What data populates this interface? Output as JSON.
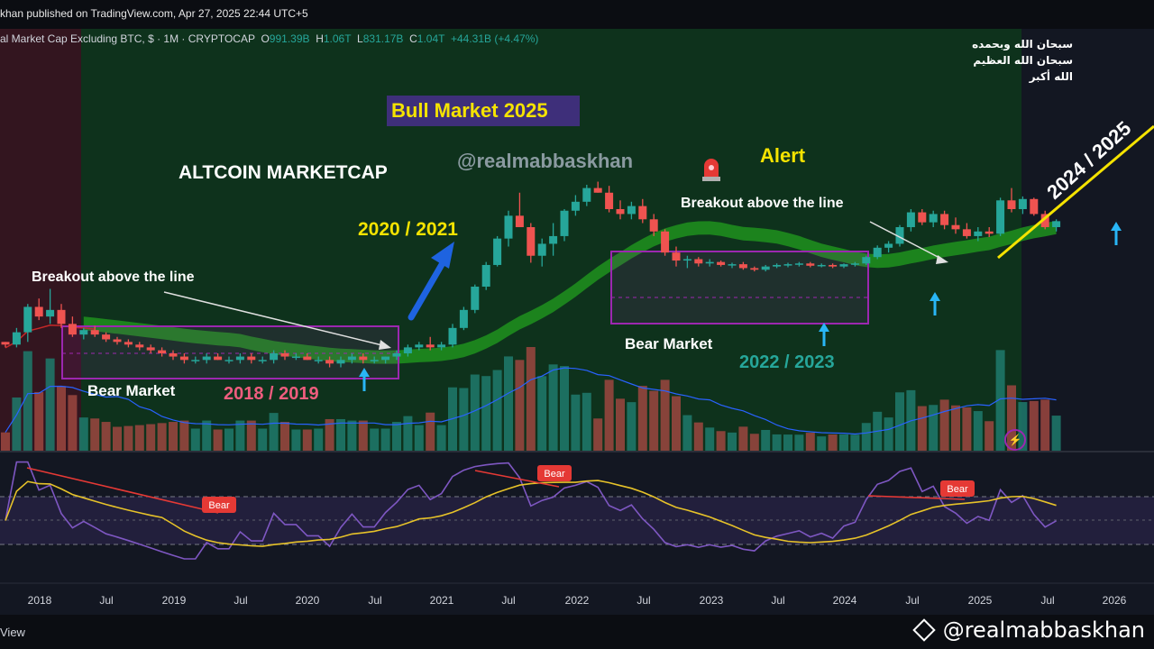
{
  "header": {
    "published": "khan published on TradingView.com, Apr 27, 2025 22:44 UTC+5",
    "symbol": "al Market Cap Excluding BTC, $ · 1M · CRYPTOCAP",
    "open_label": "O",
    "open": "991.39B",
    "high_label": "H",
    "high": "1.06T",
    "low_label": "L",
    "low": "831.17B",
    "close_label": "C",
    "close": "1.04T",
    "change": "+44.31B (+4.47%)"
  },
  "annotations": {
    "bull_market": "Bull Market 2025",
    "watermark": "@realmabbaskhan",
    "title": "ALTCOIN MARKETCAP",
    "alert": "Alert",
    "breakout_2024": "Breakout above the line",
    "breakout_2019": "Breakout above the line",
    "y2020_2021": "2020 / 2021",
    "bear_1": "Bear Market",
    "y2018_2019": "2018 / 2019",
    "bear_2": "Bear Market",
    "y2022_2023": "2022 / 2023",
    "y2024_2025": "2024 / 2025",
    "arabic_line1": "سبحان الله وبحمده",
    "arabic_line2": "سبحان الله العظيم",
    "arabic_line3": "الله أكبر"
  },
  "rsi_labels": [
    "Bear",
    "Bear",
    "Bear"
  ],
  "footer": {
    "view": "View",
    "handle": "@realmabbaskhan"
  },
  "colors": {
    "up": "#26a69a",
    "down": "#ef5350",
    "bull_bg": "#0f3a1e",
    "bear_bg": "#3a1420",
    "band": "#1e8c1e",
    "box": "#9c27b0",
    "rsi_line": "#7e57c2",
    "rsi_ma": "#e6c229"
  },
  "chart_data": {
    "type": "candlestick",
    "x_tick_labels": [
      "2018",
      "Jul",
      "2019",
      "Jul",
      "2020",
      "Jul",
      "2021",
      "Jul",
      "2022",
      "Jul",
      "2023",
      "Jul",
      "2024",
      "Jul",
      "2025",
      "Jul",
      "2026"
    ],
    "scale": "log",
    "candles": [
      {
        "o": 0.24,
        "h": 0.24,
        "l": 0.22,
        "c": 0.23
      },
      {
        "o": 0.23,
        "h": 0.3,
        "l": 0.22,
        "c": 0.28
      },
      {
        "o": 0.28,
        "h": 0.44,
        "l": 0.24,
        "c": 0.42
      },
      {
        "o": 0.42,
        "h": 0.48,
        "l": 0.34,
        "c": 0.36
      },
      {
        "o": 0.36,
        "h": 0.56,
        "l": 0.32,
        "c": 0.4
      },
      {
        "o": 0.4,
        "h": 0.44,
        "l": 0.3,
        "c": 0.32
      },
      {
        "o": 0.32,
        "h": 0.36,
        "l": 0.26,
        "c": 0.27
      },
      {
        "o": 0.27,
        "h": 0.3,
        "l": 0.25,
        "c": 0.29
      },
      {
        "o": 0.29,
        "h": 0.31,
        "l": 0.26,
        "c": 0.27
      },
      {
        "o": 0.27,
        "h": 0.28,
        "l": 0.24,
        "c": 0.25
      },
      {
        "o": 0.25,
        "h": 0.26,
        "l": 0.23,
        "c": 0.24
      },
      {
        "o": 0.24,
        "h": 0.25,
        "l": 0.22,
        "c": 0.23
      },
      {
        "o": 0.23,
        "h": 0.24,
        "l": 0.21,
        "c": 0.22
      },
      {
        "o": 0.22,
        "h": 0.23,
        "l": 0.2,
        "c": 0.21
      },
      {
        "o": 0.21,
        "h": 0.22,
        "l": 0.19,
        "c": 0.2
      },
      {
        "o": 0.2,
        "h": 0.21,
        "l": 0.18,
        "c": 0.19
      },
      {
        "o": 0.19,
        "h": 0.2,
        "l": 0.17,
        "c": 0.18
      },
      {
        "o": 0.18,
        "h": 0.19,
        "l": 0.17,
        "c": 0.18
      },
      {
        "o": 0.18,
        "h": 0.2,
        "l": 0.17,
        "c": 0.19
      },
      {
        "o": 0.19,
        "h": 0.2,
        "l": 0.18,
        "c": 0.18
      },
      {
        "o": 0.18,
        "h": 0.19,
        "l": 0.17,
        "c": 0.18
      },
      {
        "o": 0.18,
        "h": 0.2,
        "l": 0.17,
        "c": 0.19
      },
      {
        "o": 0.19,
        "h": 0.2,
        "l": 0.17,
        "c": 0.18
      },
      {
        "o": 0.18,
        "h": 0.19,
        "l": 0.17,
        "c": 0.18
      },
      {
        "o": 0.18,
        "h": 0.21,
        "l": 0.17,
        "c": 0.2
      },
      {
        "o": 0.2,
        "h": 0.21,
        "l": 0.18,
        "c": 0.19
      },
      {
        "o": 0.19,
        "h": 0.2,
        "l": 0.18,
        "c": 0.19
      },
      {
        "o": 0.19,
        "h": 0.2,
        "l": 0.18,
        "c": 0.18
      },
      {
        "o": 0.18,
        "h": 0.19,
        "l": 0.17,
        "c": 0.18
      },
      {
        "o": 0.18,
        "h": 0.19,
        "l": 0.16,
        "c": 0.17
      },
      {
        "o": 0.17,
        "h": 0.19,
        "l": 0.16,
        "c": 0.18
      },
      {
        "o": 0.18,
        "h": 0.2,
        "l": 0.17,
        "c": 0.19
      },
      {
        "o": 0.19,
        "h": 0.2,
        "l": 0.17,
        "c": 0.18
      },
      {
        "o": 0.18,
        "h": 0.19,
        "l": 0.17,
        "c": 0.18
      },
      {
        "o": 0.18,
        "h": 0.19,
        "l": 0.17,
        "c": 0.19
      },
      {
        "o": 0.19,
        "h": 0.21,
        "l": 0.18,
        "c": 0.2
      },
      {
        "o": 0.2,
        "h": 0.23,
        "l": 0.19,
        "c": 0.22
      },
      {
        "o": 0.22,
        "h": 0.24,
        "l": 0.21,
        "c": 0.23
      },
      {
        "o": 0.23,
        "h": 0.26,
        "l": 0.21,
        "c": 0.22
      },
      {
        "o": 0.22,
        "h": 0.24,
        "l": 0.21,
        "c": 0.23
      },
      {
        "o": 0.23,
        "h": 0.32,
        "l": 0.22,
        "c": 0.3
      },
      {
        "o": 0.3,
        "h": 0.42,
        "l": 0.29,
        "c": 0.4
      },
      {
        "o": 0.4,
        "h": 0.6,
        "l": 0.38,
        "c": 0.58
      },
      {
        "o": 0.58,
        "h": 0.86,
        "l": 0.55,
        "c": 0.82
      },
      {
        "o": 0.82,
        "h": 1.3,
        "l": 0.8,
        "c": 1.25
      },
      {
        "o": 1.25,
        "h": 1.95,
        "l": 1.1,
        "c": 1.8
      },
      {
        "o": 1.8,
        "h": 2.6,
        "l": 1.5,
        "c": 1.5
      },
      {
        "o": 1.5,
        "h": 1.6,
        "l": 0.85,
        "c": 0.95
      },
      {
        "o": 0.95,
        "h": 1.25,
        "l": 0.8,
        "c": 1.15
      },
      {
        "o": 1.15,
        "h": 1.6,
        "l": 0.95,
        "c": 1.3
      },
      {
        "o": 1.3,
        "h": 2.0,
        "l": 1.2,
        "c": 1.95
      },
      {
        "o": 1.95,
        "h": 2.5,
        "l": 1.8,
        "c": 2.25
      },
      {
        "o": 2.25,
        "h": 2.95,
        "l": 2.1,
        "c": 2.8
      },
      {
        "o": 2.8,
        "h": 3.1,
        "l": 2.6,
        "c": 2.6
      },
      {
        "o": 2.6,
        "h": 2.9,
        "l": 1.9,
        "c": 2.0
      },
      {
        "o": 2.0,
        "h": 2.3,
        "l": 1.7,
        "c": 1.85
      },
      {
        "o": 1.85,
        "h": 2.25,
        "l": 1.7,
        "c": 2.1
      },
      {
        "o": 2.1,
        "h": 2.35,
        "l": 1.6,
        "c": 1.7
      },
      {
        "o": 1.7,
        "h": 1.85,
        "l": 1.3,
        "c": 1.4
      },
      {
        "o": 1.4,
        "h": 1.45,
        "l": 0.95,
        "c": 1.0
      },
      {
        "o": 1.0,
        "h": 1.1,
        "l": 0.8,
        "c": 0.88
      },
      {
        "o": 0.88,
        "h": 0.95,
        "l": 0.78,
        "c": 0.9
      },
      {
        "o": 0.9,
        "h": 0.93,
        "l": 0.8,
        "c": 0.84
      },
      {
        "o": 0.84,
        "h": 0.9,
        "l": 0.8,
        "c": 0.86
      },
      {
        "o": 0.86,
        "h": 0.88,
        "l": 0.8,
        "c": 0.82
      },
      {
        "o": 0.82,
        "h": 0.85,
        "l": 0.78,
        "c": 0.83
      },
      {
        "o": 0.83,
        "h": 0.86,
        "l": 0.76,
        "c": 0.78
      },
      {
        "o": 0.78,
        "h": 0.8,
        "l": 0.74,
        "c": 0.76
      },
      {
        "o": 0.76,
        "h": 0.82,
        "l": 0.74,
        "c": 0.8
      },
      {
        "o": 0.8,
        "h": 0.84,
        "l": 0.78,
        "c": 0.82
      },
      {
        "o": 0.82,
        "h": 0.85,
        "l": 0.79,
        "c": 0.83
      },
      {
        "o": 0.83,
        "h": 0.86,
        "l": 0.8,
        "c": 0.84
      },
      {
        "o": 0.84,
        "h": 0.86,
        "l": 0.79,
        "c": 0.81
      },
      {
        "o": 0.81,
        "h": 0.84,
        "l": 0.79,
        "c": 0.82
      },
      {
        "o": 0.82,
        "h": 0.84,
        "l": 0.78,
        "c": 0.8
      },
      {
        "o": 0.8,
        "h": 0.84,
        "l": 0.78,
        "c": 0.83
      },
      {
        "o": 0.83,
        "h": 0.86,
        "l": 0.8,
        "c": 0.84
      },
      {
        "o": 0.84,
        "h": 0.95,
        "l": 0.82,
        "c": 0.93
      },
      {
        "o": 0.93,
        "h": 1.12,
        "l": 0.9,
        "c": 1.08
      },
      {
        "o": 1.08,
        "h": 1.2,
        "l": 1.0,
        "c": 1.15
      },
      {
        "o": 1.15,
        "h": 1.55,
        "l": 1.1,
        "c": 1.5
      },
      {
        "o": 1.5,
        "h": 2.0,
        "l": 1.4,
        "c": 1.9
      },
      {
        "o": 1.9,
        "h": 2.0,
        "l": 1.55,
        "c": 1.62
      },
      {
        "o": 1.62,
        "h": 1.95,
        "l": 1.5,
        "c": 1.85
      },
      {
        "o": 1.85,
        "h": 1.95,
        "l": 1.45,
        "c": 1.55
      },
      {
        "o": 1.55,
        "h": 1.75,
        "l": 1.35,
        "c": 1.45
      },
      {
        "o": 1.45,
        "h": 1.6,
        "l": 1.25,
        "c": 1.3
      },
      {
        "o": 1.3,
        "h": 1.5,
        "l": 1.2,
        "c": 1.4
      },
      {
        "o": 1.4,
        "h": 1.5,
        "l": 1.28,
        "c": 1.35
      },
      {
        "o": 1.35,
        "h": 2.4,
        "l": 1.3,
        "c": 2.3
      },
      {
        "o": 2.3,
        "h": 2.8,
        "l": 1.9,
        "c": 2.0
      },
      {
        "o": 2.0,
        "h": 2.45,
        "l": 1.85,
        "c": 2.35
      },
      {
        "o": 2.35,
        "h": 2.4,
        "l": 1.8,
        "c": 1.85
      },
      {
        "o": 1.85,
        "h": 1.95,
        "l": 1.45,
        "c": 1.5
      },
      {
        "o": 1.5,
        "h": 1.7,
        "l": 1.4,
        "c": 1.65
      }
    ],
    "indicator": "RSI with moving average (lower panel)"
  }
}
